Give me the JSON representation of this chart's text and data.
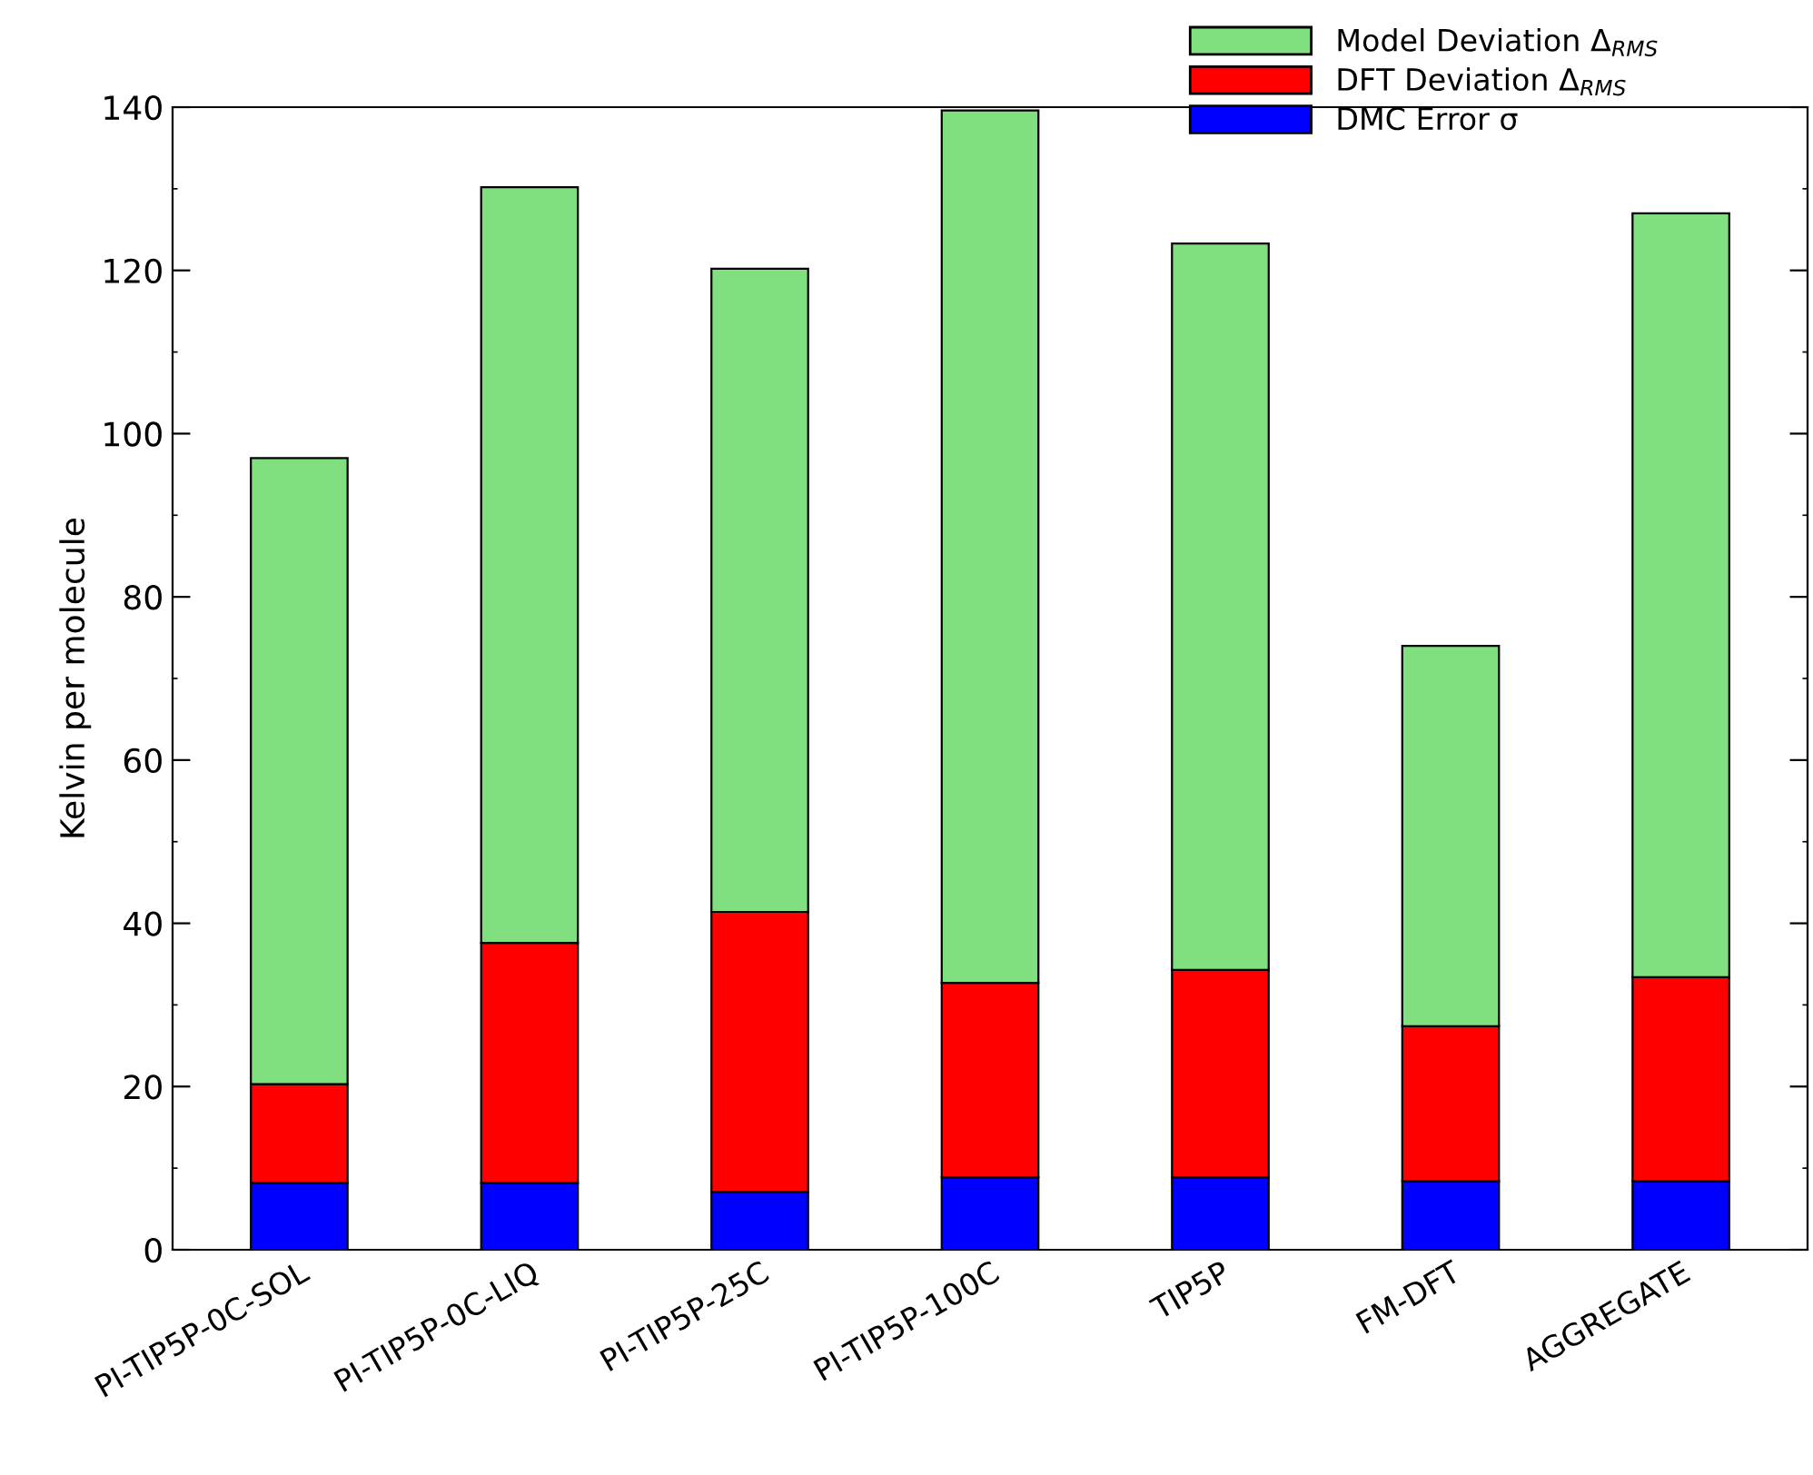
{
  "chart_data": {
    "type": "bar",
    "stacked": true,
    "ylabel": "Kelvin per molecule",
    "categories": [
      "PI-TIP5P-0C-SOL",
      "PI-TIP5P-0C-LIQ",
      "PI-TIP5P-25C",
      "PI-TIP5P-100C",
      "TIP5P",
      "FM-DFT",
      "AGGREGATE"
    ],
    "series": [
      {
        "name": "DMC Error σ",
        "color": "#0000ff",
        "values": [
          8.2,
          8.2,
          7.1,
          8.9,
          8.9,
          8.4,
          8.4
        ]
      },
      {
        "name": "DFT Deviation Δ$_{RMS}$",
        "color": "#ff0000",
        "values": [
          12.1,
          29.4,
          34.3,
          23.8,
          25.4,
          19.0,
          25.0
        ]
      },
      {
        "name": "Model Deviation Δ$_{RMS}$",
        "color": "#80e080",
        "values": [
          76.7,
          92.6,
          78.8,
          106.9,
          89.0,
          46.6,
          93.6
        ]
      }
    ],
    "ylim": [
      0,
      140
    ],
    "yticks": [
      0,
      20,
      40,
      60,
      80,
      100,
      120,
      140
    ],
    "grid": false,
    "legend": "top right"
  }
}
